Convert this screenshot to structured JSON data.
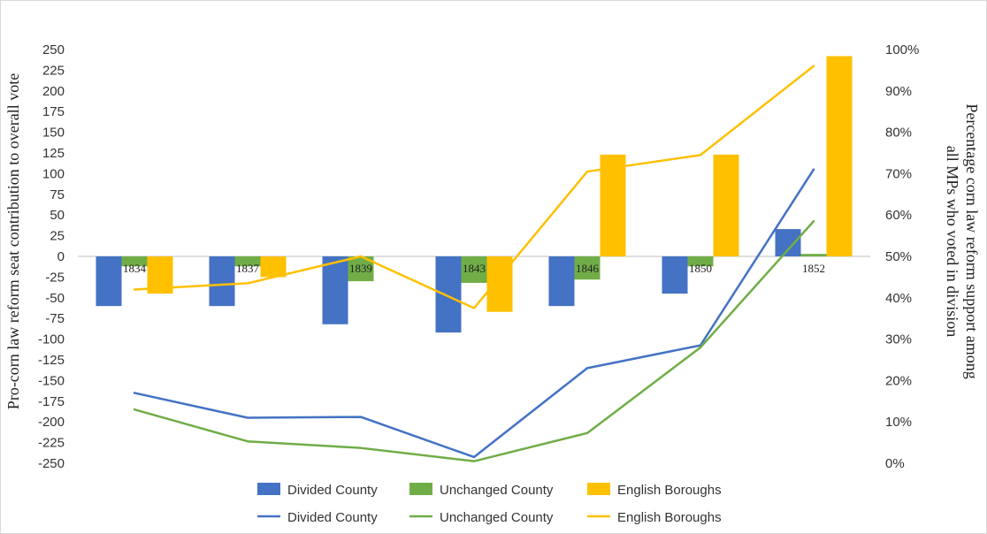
{
  "chart_data": {
    "type": "bar+line",
    "categories": [
      "1834",
      "1837",
      "1839",
      "1843",
      "1846",
      "1850",
      "1852"
    ],
    "bar_series": [
      {
        "name": "Divided County",
        "color": "#4472C4",
        "values": [
          -60,
          -60,
          -82,
          -92,
          -60,
          -45,
          33
        ]
      },
      {
        "name": "Unchanged County",
        "color": "#70AD47",
        "values": [
          -12,
          -12,
          -30,
          -32,
          -28,
          -12,
          3
        ]
      },
      {
        "name": "English Boroughs",
        "color": "#FFC000",
        "values": [
          -45,
          -25,
          0,
          -67,
          123,
          123,
          242
        ]
      }
    ],
    "line_series": [
      {
        "name": "Divided County",
        "color": "#4472C4",
        "values": [
          17,
          11,
          11.2,
          1.5,
          23,
          28.5,
          71
        ]
      },
      {
        "name": "Unchanged County",
        "color": "#70AD47",
        "values": [
          13,
          5.3,
          3.7,
          0.5,
          7.3,
          28,
          58.5
        ]
      },
      {
        "name": "English Boroughs",
        "color": "#FFC000",
        "values": [
          42,
          43.5,
          50,
          37.5,
          70.5,
          74.5,
          96
        ]
      }
    ],
    "y_left": {
      "label": "Pro-corn law reform seat contribution to overall vote",
      "range": [
        -250,
        250
      ],
      "ticks": [
        "250",
        "225",
        "200",
        "175",
        "150",
        "125",
        "100",
        "75",
        "50",
        "25",
        "0",
        "-25",
        "-50",
        "-75",
        "-100",
        "-125",
        "-150",
        "-175",
        "-200",
        "-225",
        "-250"
      ]
    },
    "y_right": {
      "label_line1": "Percentage corn law reform support among",
      "label_line2": "all MPs who voted in division",
      "range": [
        0,
        100
      ],
      "ticks": [
        "100%",
        "90%",
        "80%",
        "70%",
        "60%",
        "50%",
        "40%",
        "30%",
        "20%",
        "10%",
        "0%"
      ]
    },
    "legend": {
      "position": "bottom",
      "row1": [
        "Divided County",
        "Unchanged County",
        "English Boroughs"
      ],
      "row2": [
        "Divided County",
        "Unchanged County",
        "English Boroughs"
      ]
    },
    "grid": false
  }
}
